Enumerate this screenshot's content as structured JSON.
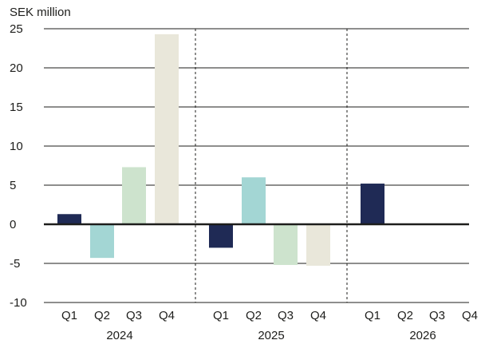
{
  "chart_data": {
    "type": "bar",
    "title": "",
    "ylabel": "SEK million",
    "xlabel": "",
    "ylim": [
      -10,
      25
    ],
    "yticks": [
      25,
      20,
      15,
      10,
      5,
      0,
      -5,
      -10
    ],
    "grid": true,
    "groups": [
      {
        "year": "2024",
        "categories": [
          "Q1",
          "Q2",
          "Q3",
          "Q4"
        ],
        "values": [
          1.3,
          -4.3,
          7.3,
          24.3
        ]
      },
      {
        "year": "2025",
        "categories": [
          "Q1",
          "Q2",
          "Q3",
          "Q4"
        ],
        "values": [
          -3.0,
          6.0,
          -5.2,
          -5.3
        ]
      },
      {
        "year": "2026",
        "categories": [
          "Q1",
          "Q2",
          "Q3",
          "Q4"
        ],
        "values": [
          5.2,
          null,
          null,
          null
        ]
      }
    ],
    "quarter_colors": {
      "Q1": "#1f2a55",
      "Q2": "#a3d6d4",
      "Q3": "#cde3cd",
      "Q4": "#e9e7da"
    },
    "line_color": "#1d1d1b"
  }
}
